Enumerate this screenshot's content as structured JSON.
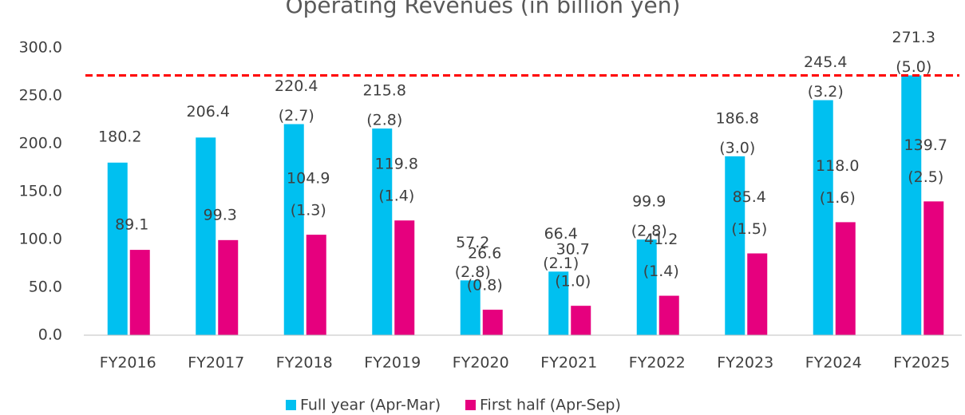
{
  "chart_data": {
    "type": "bar",
    "title": "Operating Revenues  (in billion yen)",
    "categories": [
      "FY2016",
      "FY2017",
      "FY2018",
      "FY2019",
      "FY2020",
      "FY2021",
      "FY2022",
      "FY2023",
      "FY2024",
      "FY2025"
    ],
    "series": [
      {
        "name": "Full year (Apr-Mar)",
        "color": "#00c0f0",
        "values": [
          180.2,
          206.4,
          220.4,
          215.8,
          57.2,
          66.4,
          99.9,
          186.8,
          245.4,
          271.3
        ],
        "value_labels": [
          "180.2",
          "206.4",
          "220.4",
          "215.8",
          "57.2",
          "66.4",
          "99.9",
          "186.8",
          "245.4",
          "271.3"
        ],
        "notes": [
          null,
          null,
          "(2.7)",
          "(2.8)",
          "(2.8)",
          "(2.1)",
          "(2.8)",
          "(3.0)",
          "(3.2)",
          "(5.0)"
        ]
      },
      {
        "name": "First half (Apr-Sep)",
        "color": "#e6007e",
        "values": [
          89.1,
          99.3,
          104.9,
          119.8,
          26.6,
          30.7,
          41.2,
          85.4,
          118.0,
          139.7
        ],
        "value_labels": [
          "89.1",
          "99.3",
          "104.9",
          "119.8",
          "26.6",
          "30.7",
          "41.2",
          "85.4",
          "118.0",
          "139.7"
        ],
        "notes": [
          null,
          null,
          "(1.3)",
          "(1.4)",
          "(0.8)",
          "(1.0)",
          "(1.4)",
          "(1.5)",
          "(1.6)",
          "(2.5)"
        ]
      }
    ],
    "ylim": [
      0,
      300
    ],
    "yticks": [
      {
        "value": 0,
        "label": "0.0"
      },
      {
        "value": 50,
        "label": "50.0"
      },
      {
        "value": 100,
        "label": "100.0"
      },
      {
        "value": 150,
        "label": "150.0"
      },
      {
        "value": 200,
        "label": "200.0"
      },
      {
        "value": 250,
        "label": "250.0"
      },
      {
        "value": 300,
        "label": "300.0"
      }
    ],
    "reference_line": {
      "value": 271.3,
      "color": "#ff0000"
    },
    "grid": false,
    "legend": "bottom"
  }
}
